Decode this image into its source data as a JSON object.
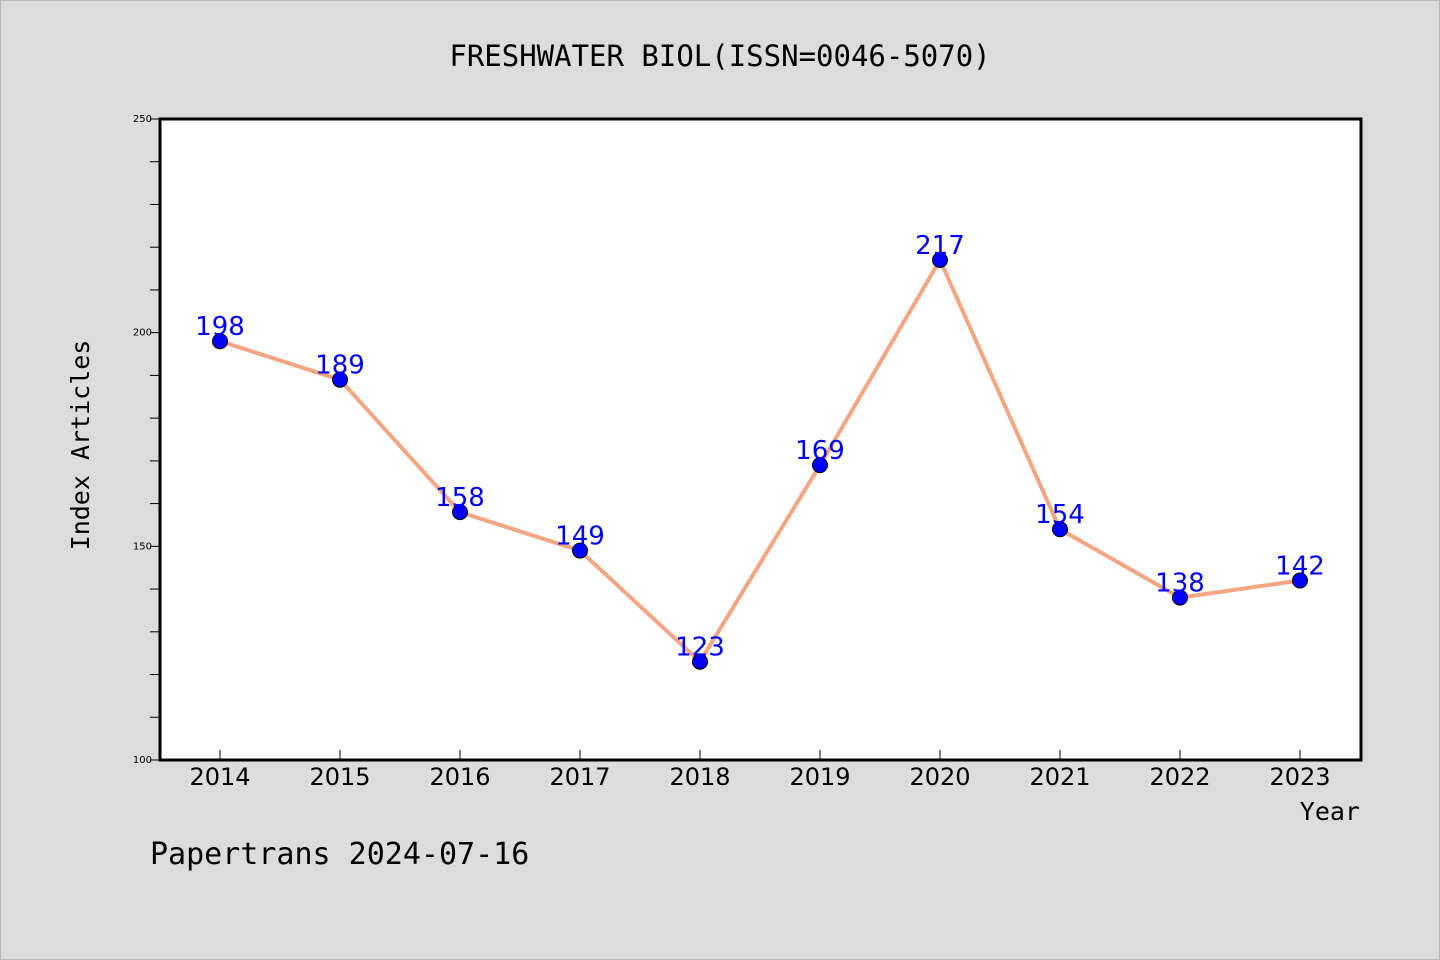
{
  "chart_data": {
    "type": "line",
    "title": "FRESHWATER BIOL(ISSN=0046-5070)",
    "xlabel": "Year",
    "ylabel": "Index Articles",
    "categories": [
      "2014",
      "2015",
      "2016",
      "2017",
      "2018",
      "2019",
      "2020",
      "2021",
      "2022",
      "2023"
    ],
    "values": [
      198,
      189,
      158,
      149,
      123,
      169,
      217,
      154,
      138,
      142
    ],
    "ylim": [
      100,
      250
    ],
    "yticks": [
      "100",
      "150",
      "200",
      "250"
    ],
    "grid": false,
    "data_labels": true,
    "footer": "Papertrans 2024-07-16"
  },
  "colors": {
    "background": "#dcdcdc",
    "plot_area": "#ffffff",
    "line": "#f4a582",
    "marker": "#0000ff",
    "data_label": "#0000ff",
    "text": "#000000"
  }
}
